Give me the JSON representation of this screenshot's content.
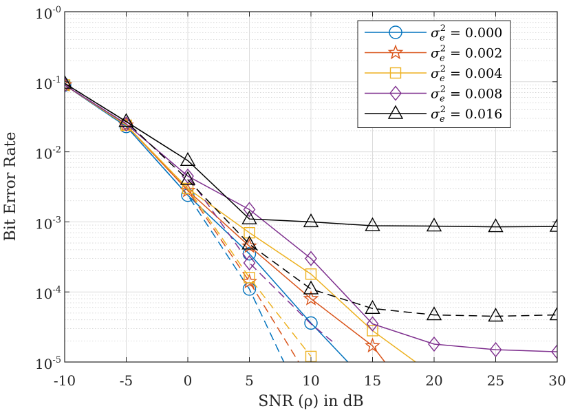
{
  "chart_data": {
    "type": "line",
    "xlabel": "SNR (ρ) in dB",
    "ylabel": "Bit Error Rate",
    "xlim": [
      -10,
      30
    ],
    "ylim": [
      1e-05,
      1
    ],
    "yscale": "log",
    "x_ticks": [
      -10,
      -5,
      0,
      5,
      10,
      15,
      20,
      25,
      30
    ],
    "x_tick_labels": [
      "-10",
      "-5",
      "0",
      "5",
      "10",
      "15",
      "20",
      "25",
      "30"
    ],
    "y_ticks": [
      {
        "value": 1e-05,
        "base": "10",
        "exp": "-5"
      },
      {
        "value": 0.0001,
        "base": "10",
        "exp": "-4"
      },
      {
        "value": 0.001,
        "base": "10",
        "exp": "-3"
      },
      {
        "value": 0.01,
        "base": "10",
        "exp": "-2"
      },
      {
        "value": 0.1,
        "base": "10",
        "exp": "-1"
      },
      {
        "value": 1,
        "base": "10",
        "exp": "-0"
      }
    ],
    "grid": true,
    "minor_grid": true,
    "legend_position": "top-right",
    "series": [
      {
        "label_prefix": "σ",
        "label_value": "= 0.000",
        "color": "#0072BD",
        "marker": "circle",
        "solid_x": [
          -10,
          -5,
          0,
          5,
          10,
          13
        ],
        "solid_y": [
          0.09,
          0.023,
          0.0024,
          0.00035,
          3.6e-05,
          1e-05
        ],
        "dashed_x": [
          -10,
          -5,
          0,
          5,
          7.8
        ],
        "dashed_y": [
          0.09,
          0.023,
          0.0024,
          0.00011,
          1e-05
        ],
        "marker_x": [
          -10,
          -5,
          0,
          5,
          10,
          5
        ],
        "marker_y": [
          0.09,
          0.023,
          0.0024,
          0.00035,
          3.6e-05,
          0.00011
        ]
      },
      {
        "label_prefix": "σ",
        "label_value": "= 0.002",
        "color": "#D95319",
        "marker": "star",
        "solid_x": [
          -10,
          -5,
          0,
          5,
          10,
          15,
          16
        ],
        "solid_y": [
          0.09,
          0.024,
          0.0028,
          0.00045,
          8e-05,
          1.7e-05,
          1e-05
        ],
        "dashed_x": [
          -10,
          -5,
          0,
          5,
          9
        ],
        "dashed_y": [
          0.09,
          0.024,
          0.0028,
          0.00014,
          1e-05
        ],
        "marker_x": [
          -10,
          -5,
          0,
          5,
          10,
          15,
          5
        ],
        "marker_y": [
          0.09,
          0.024,
          0.0028,
          0.00045,
          8e-05,
          1.7e-05,
          0.00014
        ]
      },
      {
        "label_prefix": "σ",
        "label_value": "= 0.004",
        "color": "#EDB120",
        "marker": "square",
        "solid_x": [
          -10,
          -5,
          0,
          5,
          10,
          15,
          18.5
        ],
        "solid_y": [
          0.09,
          0.024,
          0.003,
          0.0007,
          0.00018,
          2.8e-05,
          1e-05
        ],
        "dashed_x": [
          -10,
          -5,
          0,
          5,
          10
        ],
        "dashed_y": [
          0.09,
          0.024,
          0.003,
          0.00016,
          1.2e-05
        ],
        "marker_x": [
          -10,
          -5,
          0,
          5,
          10,
          15,
          5,
          10
        ],
        "marker_y": [
          0.09,
          0.024,
          0.003,
          0.0007,
          0.00018,
          2.8e-05,
          0.00016,
          1.2e-05
        ]
      },
      {
        "label_prefix": "σ",
        "label_value": "= 0.008",
        "color": "#7E2F8E",
        "marker": "diamond",
        "solid_x": [
          -10,
          -5,
          0,
          5,
          10,
          15,
          20,
          25,
          30
        ],
        "solid_y": [
          0.09,
          0.025,
          0.0045,
          0.0015,
          0.0003,
          3.5e-05,
          1.8e-05,
          1.5e-05,
          1.4e-05
        ],
        "dashed_x": [
          -10,
          -5,
          0,
          5,
          10,
          12
        ],
        "dashed_y": [
          0.09,
          0.025,
          0.0045,
          0.00026,
          3.5e-05,
          1.8e-05
        ],
        "marker_x": [
          -10,
          -5,
          0,
          5,
          10,
          15,
          20,
          25,
          30,
          5
        ],
        "marker_y": [
          0.09,
          0.025,
          0.0045,
          0.0015,
          0.0003,
          3.5e-05,
          1.8e-05,
          1.5e-05,
          1.4e-05,
          0.00026
        ]
      },
      {
        "label_prefix": "σ",
        "label_value": "= 0.016",
        "color": "#000000",
        "marker": "triangle",
        "solid_x": [
          -10,
          -5,
          0,
          5,
          10,
          15,
          20,
          25,
          30
        ],
        "solid_y": [
          0.095,
          0.027,
          0.0075,
          0.0011,
          0.001,
          0.00088,
          0.00087,
          0.00085,
          0.00086
        ],
        "dashed_x": [
          -10,
          -5,
          0,
          5,
          10,
          15,
          20,
          25,
          30
        ],
        "dashed_y": [
          0.095,
          0.027,
          0.004,
          0.00048,
          0.00011,
          5.8e-05,
          4.7e-05,
          4.5e-05,
          4.7e-05
        ],
        "marker_x": [
          -10,
          -5,
          0,
          5,
          10,
          15,
          20,
          25,
          30,
          0,
          5,
          10,
          15,
          20,
          25,
          30
        ],
        "marker_y": [
          0.095,
          0.027,
          0.0075,
          0.0011,
          0.001,
          0.00088,
          0.00087,
          0.00085,
          0.00086,
          0.004,
          0.00048,
          0.00011,
          5.8e-05,
          4.7e-05,
          4.5e-05,
          4.7e-05
        ]
      }
    ]
  }
}
